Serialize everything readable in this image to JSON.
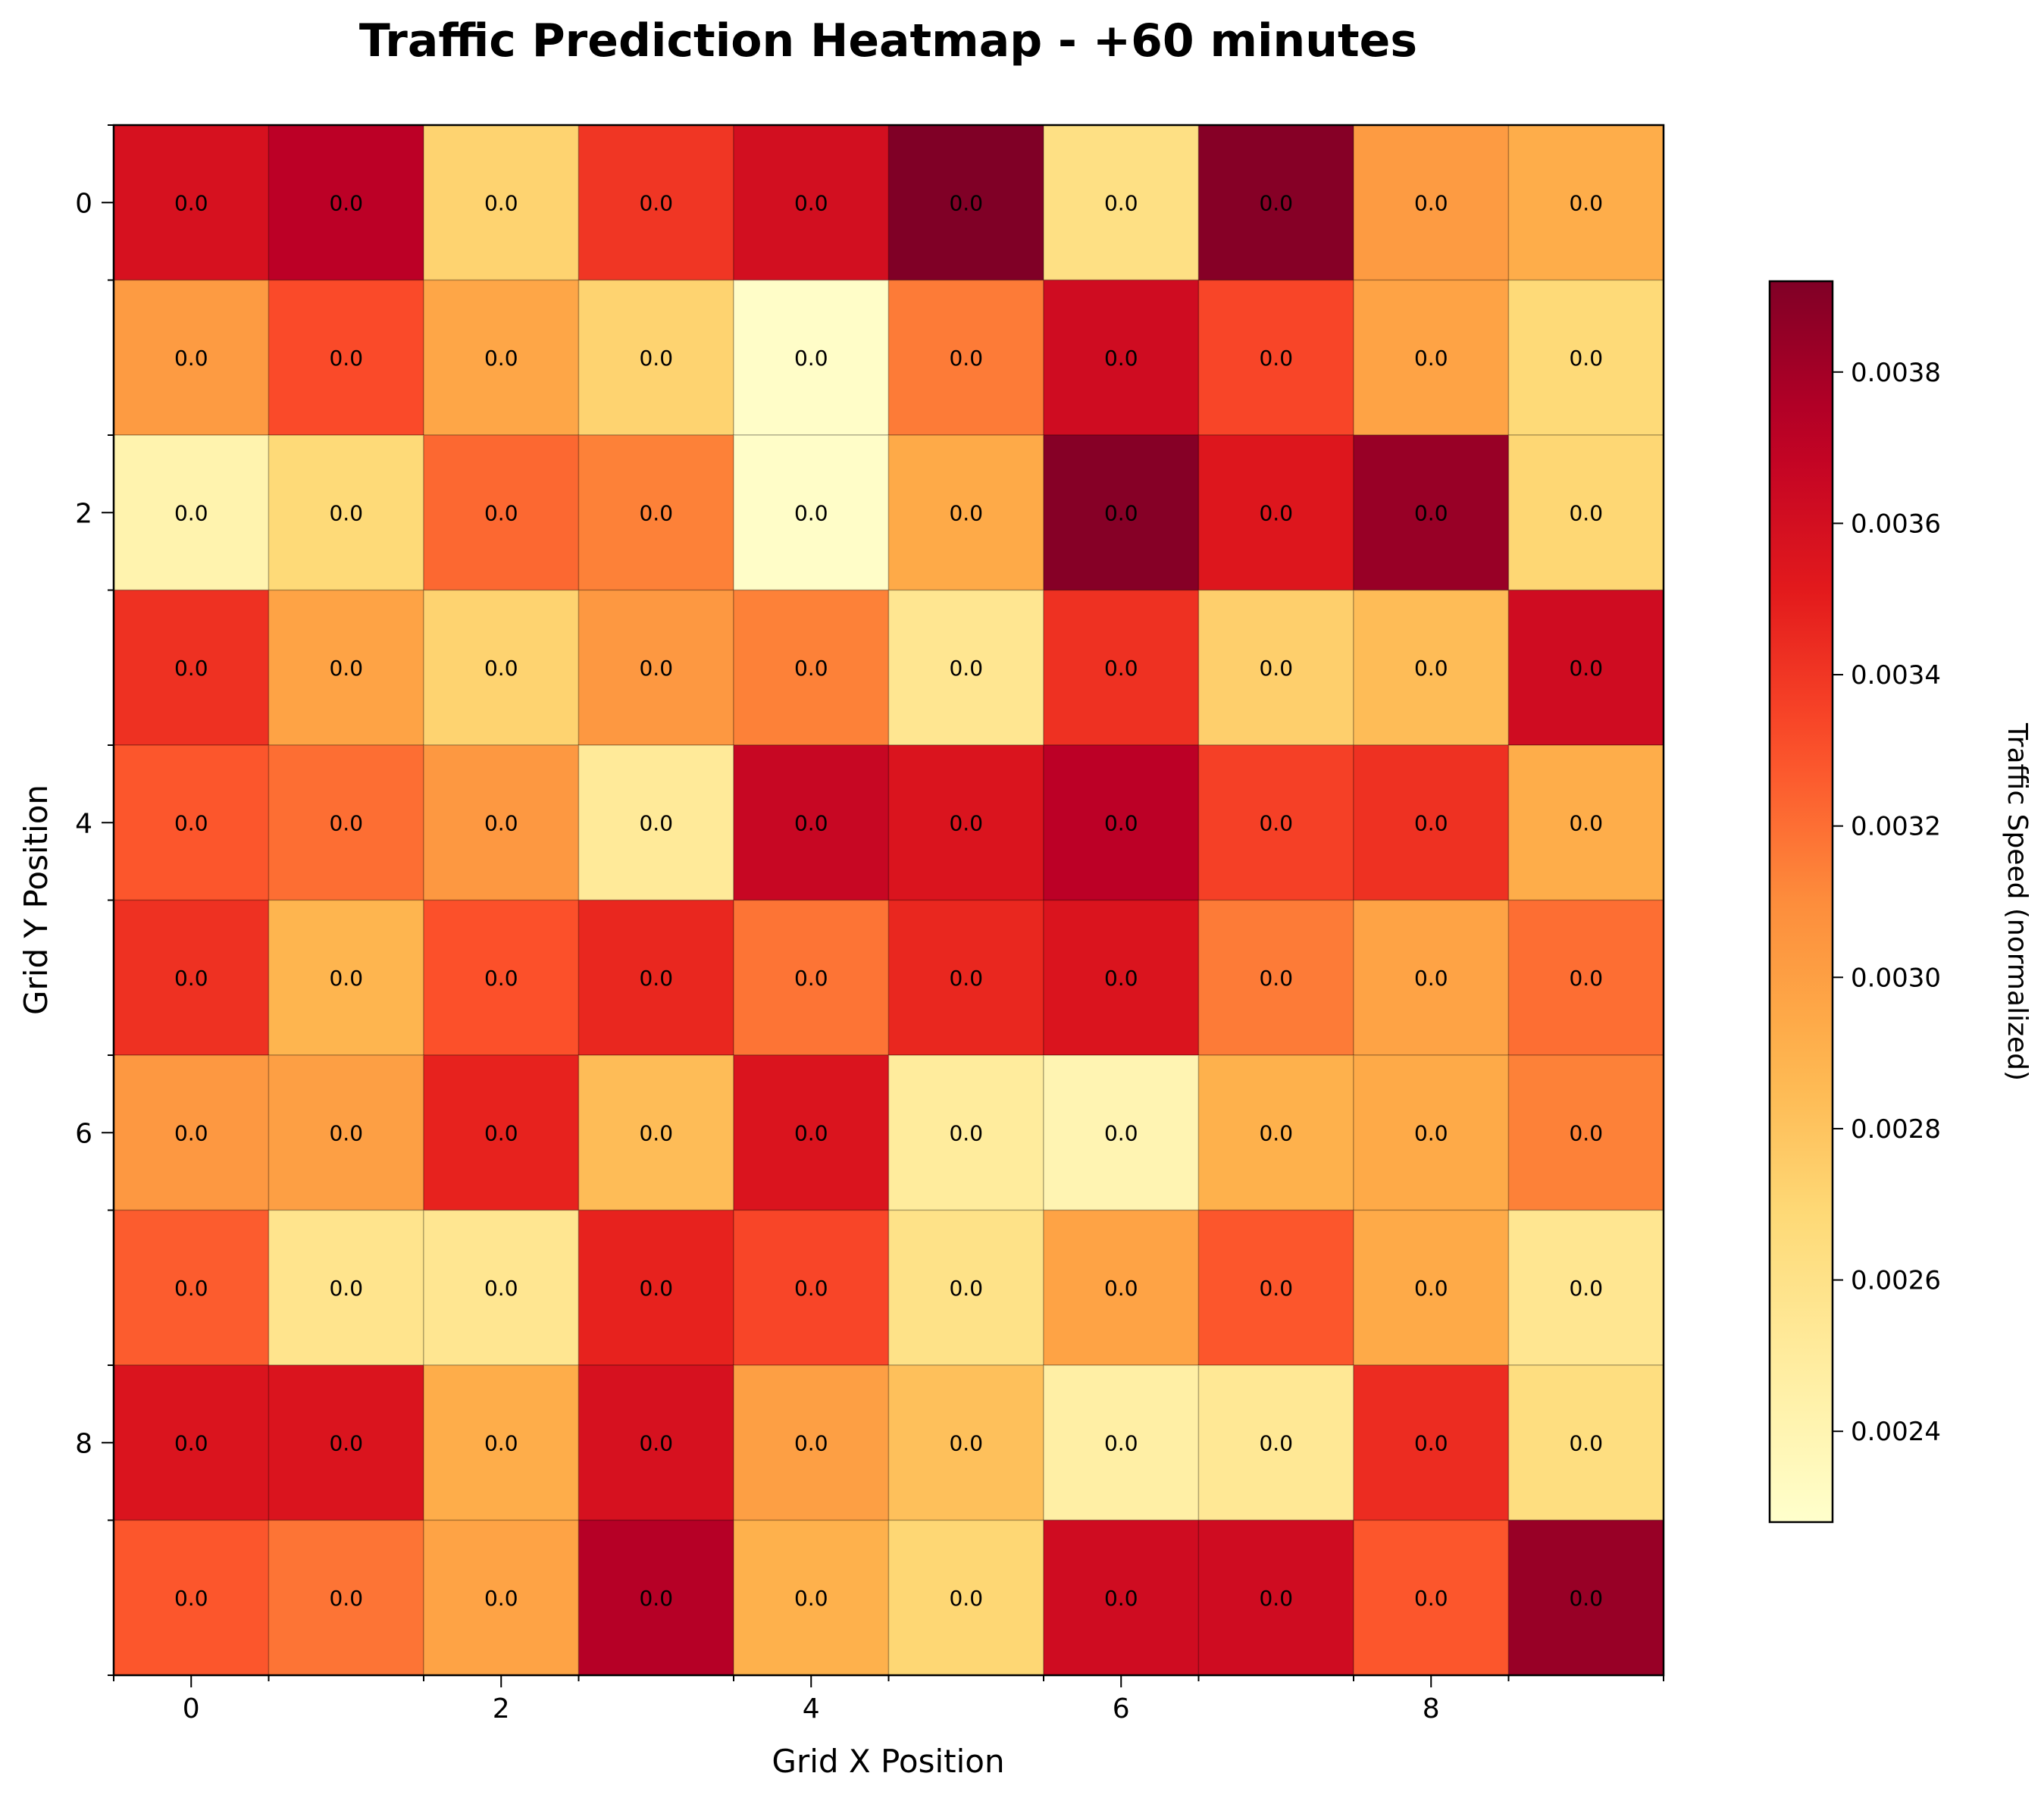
{
  "chart_data": {
    "type": "heatmap",
    "title": "Traffic Prediction Heatmap - +60 minutes",
    "xlabel": "Grid X Position",
    "ylabel": "Grid Y Position",
    "x_ticks": [
      0,
      2,
      4,
      6,
      8
    ],
    "y_ticks": [
      0,
      2,
      4,
      6,
      8
    ],
    "rows": 10,
    "cols": 10,
    "colorscale": "YlOrRd",
    "colorbar": {
      "label": "Traffic Speed (normalized)",
      "min": 0.00228,
      "max": 0.00392,
      "ticks": [
        "0.0024",
        "0.0026",
        "0.0028",
        "0.0030",
        "0.0032",
        "0.0034",
        "0.0036",
        "0.0038"
      ]
    },
    "cell_label": "0.0",
    "values": [
      [
        0.00358,
        0.00372,
        0.00272,
        0.0034,
        0.0036,
        0.00392,
        0.00262,
        0.0039,
        0.00302,
        0.00292
      ],
      [
        0.00302,
        0.00332,
        0.00296,
        0.00272,
        0.0023,
        0.00316,
        0.00362,
        0.00334,
        0.00298,
        0.00268
      ],
      [
        0.00242,
        0.00268,
        0.00322,
        0.00314,
        0.0023,
        0.00294,
        0.0039,
        0.00354,
        0.00384,
        0.0027
      ],
      [
        0.00342,
        0.00298,
        0.00272,
        0.00304,
        0.00314,
        0.00256,
        0.00342,
        0.00274,
        0.00284,
        0.00362
      ],
      [
        0.00328,
        0.0032,
        0.00304,
        0.00252,
        0.00366,
        0.00356,
        0.00372,
        0.00336,
        0.00342,
        0.00292
      ],
      [
        0.00342,
        0.00288,
        0.0033,
        0.00346,
        0.00318,
        0.00346,
        0.00356,
        0.00316,
        0.00298,
        0.0032
      ],
      [
        0.00304,
        0.003,
        0.00348,
        0.00284,
        0.00356,
        0.0025,
        0.0024,
        0.0029,
        0.00294,
        0.00314
      ],
      [
        0.00326,
        0.00258,
        0.00256,
        0.00348,
        0.00334,
        0.0026,
        0.00298,
        0.00328,
        0.00294,
        0.00256
      ],
      [
        0.00356,
        0.00356,
        0.00292,
        0.00358,
        0.003,
        0.00282,
        0.00246,
        0.00254,
        0.00344,
        0.00264
      ],
      [
        0.00328,
        0.00318,
        0.00298,
        0.00374,
        0.0029,
        0.0027,
        0.00362,
        0.00362,
        0.00328,
        0.00384
      ]
    ]
  }
}
